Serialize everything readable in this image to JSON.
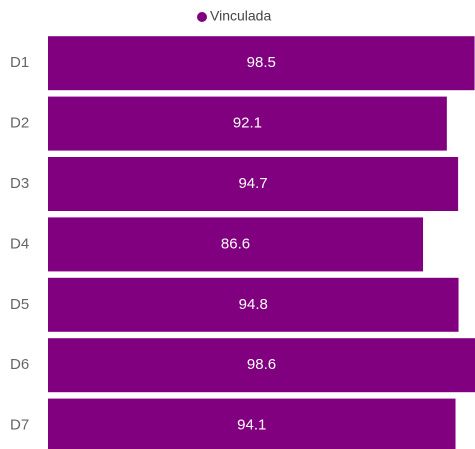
{
  "chart_data": {
    "type": "bar",
    "orientation": "horizontal",
    "categories": [
      "D1",
      "D2",
      "D3",
      "D4",
      "D5",
      "D6",
      "D7"
    ],
    "series": [
      {
        "name": "Vinculada",
        "color": "#800080",
        "values": [
          98.5,
          92.1,
          94.7,
          86.6,
          94.8,
          98.6,
          94.1
        ]
      }
    ],
    "xlim": [
      0,
      98.6
    ],
    "legend": "top"
  }
}
